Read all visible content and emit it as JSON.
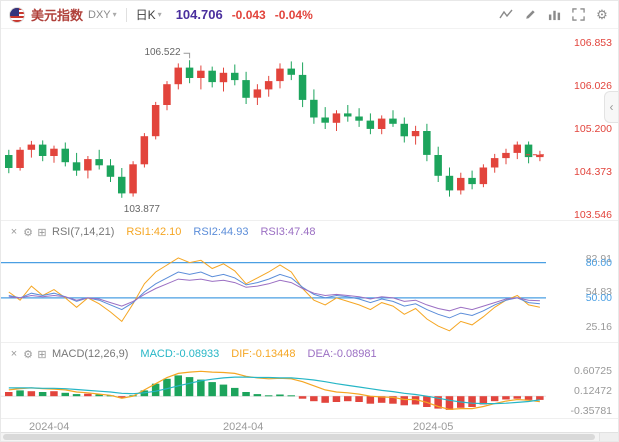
{
  "toolbar": {
    "symbol_name": "美元指数",
    "symbol_code": "DXY",
    "period_label": "日K",
    "price": "104.706",
    "change": "-0.043",
    "change_pct": "-0.04%"
  },
  "rsi_header": {
    "name": "RSI(7,14,21)",
    "rsi1": "RSI1:42.10",
    "rsi2": "RSI2:44.93",
    "rsi3": "RSI3:47.48"
  },
  "macd_header": {
    "name": "MACD(12,26,9)",
    "macd": "MACD:-0.08933",
    "dif": "DIF:-0.13448",
    "dea": "DEA:-0.08981"
  },
  "colors": {
    "up": "#e2443c",
    "down": "#1ca45c",
    "rsi1": "#f5a623",
    "rsi2": "#5b8dd9",
    "rsi3": "#9b6fc3",
    "dif": "#f5a623",
    "dea": "#26b6c6",
    "level_line": "#4a9fe3",
    "axis_price": "#e2443c",
    "axis_gray": "#999999"
  },
  "chart_data": {
    "type": "candlestick",
    "title": "美元指数 (DXY) 日K",
    "x_axis_labels": [
      {
        "t": "2024-04",
        "x": 28
      },
      {
        "t": "2024-04",
        "x": 222
      },
      {
        "t": "2024-05",
        "x": 412
      }
    ],
    "main": {
      "ylim": [
        103.469,
        107.122
      ],
      "axis_labels": [
        {
          "t": "106.853",
          "v": 106.853
        },
        {
          "t": "106.026",
          "v": 106.026
        },
        {
          "t": "105.200",
          "v": 105.2
        },
        {
          "t": "104.373",
          "v": 104.373
        },
        {
          "t": "103.546",
          "v": 103.546
        }
      ],
      "high_marker": {
        "text": "106.522",
        "index": 16,
        "value": 106.522
      },
      "low_marker": {
        "text": "103.877",
        "index": 10,
        "value": 103.877
      },
      "last_price": 104.706,
      "ohlc": [
        [
          104.7,
          104.8,
          104.35,
          104.45
        ],
        [
          104.45,
          104.85,
          104.4,
          104.8
        ],
        [
          104.8,
          104.97,
          104.65,
          104.9
        ],
        [
          104.9,
          104.98,
          104.58,
          104.68
        ],
        [
          104.68,
          104.88,
          104.55,
          104.82
        ],
        [
          104.82,
          104.94,
          104.48,
          104.56
        ],
        [
          104.56,
          104.74,
          104.3,
          104.4
        ],
        [
          104.4,
          104.68,
          104.25,
          104.62
        ],
        [
          104.62,
          104.8,
          104.42,
          104.5
        ],
        [
          104.5,
          104.62,
          104.18,
          104.28
        ],
        [
          104.28,
          104.45,
          103.877,
          103.96
        ],
        [
          103.96,
          104.58,
          103.9,
          104.52
        ],
        [
          104.52,
          105.12,
          104.46,
          105.06
        ],
        [
          105.06,
          105.72,
          105.0,
          105.66
        ],
        [
          105.66,
          106.12,
          105.56,
          106.06
        ],
        [
          106.06,
          106.46,
          105.96,
          106.38
        ],
        [
          106.38,
          106.522,
          106.08,
          106.18
        ],
        [
          106.18,
          106.42,
          105.96,
          106.32
        ],
        [
          106.32,
          106.4,
          106.0,
          106.1
        ],
        [
          106.1,
          106.38,
          105.92,
          106.28
        ],
        [
          106.28,
          106.44,
          106.04,
          106.14
        ],
        [
          106.14,
          106.3,
          105.68,
          105.8
        ],
        [
          105.8,
          106.06,
          105.66,
          105.96
        ],
        [
          105.96,
          106.22,
          105.82,
          106.12
        ],
        [
          106.12,
          106.46,
          105.98,
          106.36
        ],
        [
          106.36,
          106.5,
          106.14,
          106.24
        ],
        [
          106.24,
          106.48,
          105.62,
          105.76
        ],
        [
          105.76,
          105.96,
          105.3,
          105.42
        ],
        [
          105.42,
          105.62,
          105.2,
          105.32
        ],
        [
          105.32,
          105.56,
          105.16,
          105.5
        ],
        [
          105.5,
          105.66,
          105.34,
          105.44
        ],
        [
          105.44,
          105.6,
          105.24,
          105.36
        ],
        [
          105.36,
          105.5,
          105.1,
          105.2
        ],
        [
          105.2,
          105.46,
          105.1,
          105.4
        ],
        [
          105.4,
          105.56,
          105.24,
          105.3
        ],
        [
          105.3,
          105.42,
          104.94,
          105.06
        ],
        [
          105.06,
          105.26,
          104.9,
          105.16
        ],
        [
          105.16,
          105.3,
          104.58,
          104.7
        ],
        [
          104.7,
          104.86,
          104.18,
          104.3
        ],
        [
          104.3,
          104.46,
          103.9,
          104.02
        ],
        [
          104.02,
          104.36,
          103.94,
          104.26
        ],
        [
          104.26,
          104.4,
          104.04,
          104.14
        ],
        [
          104.14,
          104.52,
          104.08,
          104.46
        ],
        [
          104.46,
          104.72,
          104.36,
          104.64
        ],
        [
          104.64,
          104.82,
          104.52,
          104.74
        ],
        [
          104.74,
          104.96,
          104.62,
          104.9
        ],
        [
          104.9,
          104.96,
          104.54,
          104.66
        ],
        [
          104.66,
          104.78,
          104.58,
          104.706
        ]
      ]
    },
    "rsi": {
      "ylim": [
        15,
        95
      ],
      "levels": [
        80,
        50
      ],
      "axis_labels": [
        {
          "t": "82.91",
          "v": 82.91,
          "c": "#999999"
        },
        {
          "t": "80.00",
          "v": 80,
          "c": "#4a9fe3"
        },
        {
          "t": "54.83",
          "v": 54.83,
          "c": "#999999"
        },
        {
          "t": "50.00",
          "v": 50,
          "c": "#4a9fe3"
        },
        {
          "t": "25.16",
          "v": 25.16,
          "c": "#999999"
        }
      ],
      "series": [
        {
          "name": "RSI1",
          "color_key": "rsi1",
          "values": [
            55,
            48,
            60,
            52,
            57,
            50,
            42,
            50,
            45,
            38,
            30,
            45,
            62,
            72,
            78,
            84,
            80,
            82,
            75,
            79,
            73,
            62,
            67,
            72,
            78,
            72,
            58,
            48,
            44,
            50,
            47,
            44,
            40,
            46,
            43,
            36,
            41,
            32,
            26,
            22,
            30,
            27,
            34,
            42,
            48,
            52,
            44,
            42.1
          ]
        },
        {
          "name": "RSI2",
          "color_key": "rsi2",
          "values": [
            52,
            50,
            54,
            52,
            54,
            51,
            47,
            50,
            48,
            44,
            40,
            46,
            55,
            62,
            67,
            72,
            70,
            72,
            68,
            70,
            67,
            61,
            63,
            66,
            70,
            67,
            59,
            53,
            50,
            52,
            51,
            49,
            46,
            49,
            47,
            43,
            45,
            40,
            36,
            33,
            37,
            35,
            39,
            44,
            48,
            50,
            46,
            44.93
          ]
        },
        {
          "name": "RSI3",
          "color_key": "rsi3",
          "values": [
            51,
            50,
            52,
            51,
            52,
            51,
            48,
            50,
            49,
            46,
            43,
            47,
            53,
            58,
            62,
            66,
            65,
            66,
            64,
            65,
            63,
            59,
            60,
            62,
            65,
            63,
            58,
            54,
            52,
            53,
            52,
            51,
            49,
            51,
            50,
            47,
            48,
            44,
            41,
            39,
            42,
            40,
            43,
            46,
            49,
            50,
            48,
            47.48
          ]
        }
      ]
    },
    "macd": {
      "ylim": [
        -0.503,
        0.752
      ],
      "axis_labels": [
        {
          "t": "0.60725",
          "v": 0.60725
        },
        {
          "t": "0.12472",
          "v": 0.12472
        },
        {
          "t": "-0.35781",
          "v": -0.35781
        }
      ],
      "hist": [
        0.1,
        0.14,
        0.12,
        0.1,
        0.12,
        0.08,
        0.05,
        0.06,
        0.04,
        0.02,
        -0.04,
        0.02,
        0.14,
        0.3,
        0.42,
        0.5,
        0.46,
        0.4,
        0.34,
        0.28,
        0.2,
        0.1,
        0.05,
        0.02,
        0.04,
        0.02,
        -0.06,
        -0.12,
        -0.16,
        -0.14,
        -0.12,
        -0.14,
        -0.18,
        -0.16,
        -0.18,
        -0.22,
        -0.2,
        -0.26,
        -0.3,
        -0.33,
        -0.28,
        -0.26,
        -0.2,
        -0.12,
        -0.08,
        -0.06,
        -0.09,
        -0.089
      ],
      "hist_colors": [
        "r",
        "g",
        "r",
        "g",
        "r",
        "g",
        "g",
        "r",
        "g",
        "g",
        "r",
        "g",
        "g",
        "g",
        "g",
        "g",
        "g",
        "g",
        "g",
        "g",
        "g",
        "g",
        "g",
        "g",
        "g",
        "g",
        "r",
        "r",
        "r",
        "r",
        "r",
        "r",
        "r",
        "r",
        "r",
        "r",
        "r",
        "r",
        "r",
        "r",
        "r",
        "r",
        "r",
        "r",
        "r",
        "r",
        "r",
        "r"
      ],
      "dif": [
        0.15,
        0.18,
        0.2,
        0.18,
        0.17,
        0.15,
        0.1,
        0.08,
        0.05,
        0.02,
        -0.05,
        0.0,
        0.15,
        0.3,
        0.45,
        0.55,
        0.58,
        0.6,
        0.58,
        0.57,
        0.55,
        0.48,
        0.44,
        0.42,
        0.43,
        0.42,
        0.35,
        0.25,
        0.15,
        0.1,
        0.08,
        0.05,
        0.0,
        -0.02,
        -0.03,
        -0.08,
        -0.08,
        -0.15,
        -0.25,
        -0.32,
        -0.3,
        -0.3,
        -0.25,
        -0.18,
        -0.12,
        -0.08,
        -0.1,
        -0.13448
      ],
      "dea": [
        0.2,
        0.2,
        0.2,
        0.19,
        0.19,
        0.18,
        0.16,
        0.14,
        0.12,
        0.1,
        0.07,
        0.06,
        0.08,
        0.12,
        0.18,
        0.25,
        0.31,
        0.37,
        0.41,
        0.44,
        0.46,
        0.46,
        0.45,
        0.45,
        0.44,
        0.44,
        0.42,
        0.39,
        0.35,
        0.3,
        0.26,
        0.22,
        0.18,
        0.14,
        0.11,
        0.07,
        0.04,
        0.0,
        -0.05,
        -0.1,
        -0.14,
        -0.17,
        -0.18,
        -0.18,
        -0.17,
        -0.15,
        -0.13,
        -0.08981
      ]
    }
  }
}
